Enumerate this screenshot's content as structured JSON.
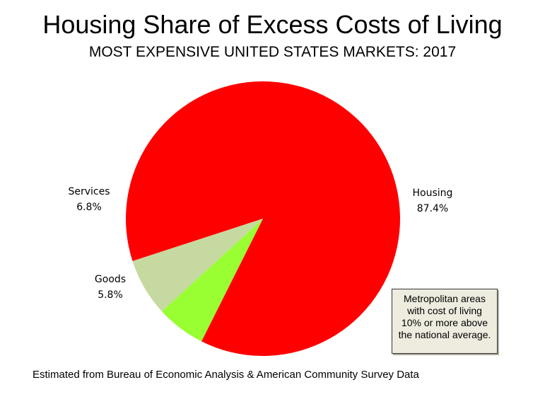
{
  "chart_data": {
    "type": "pie",
    "title": "Housing Share of Excess Costs of Living",
    "subtitle": "MOST EXPENSIVE UNITED STATES MARKETS: 2017",
    "slices": [
      {
        "label": "Housing",
        "value": 87.4,
        "value_label": "87.4%",
        "color": "#ff0000"
      },
      {
        "label": "Goods",
        "value": 5.8,
        "value_label": "5.8%",
        "color": "#99ff33"
      },
      {
        "label": "Services",
        "value": 6.8,
        "value_label": "6.8%",
        "color": "#c6d9a0"
      }
    ],
    "note_lines": [
      "Metropolitan areas",
      "with cost of living",
      "10% or more above",
      "the national average."
    ],
    "source": "Estimated from Bureau of Economic Analysis & American Community Survey Data"
  }
}
